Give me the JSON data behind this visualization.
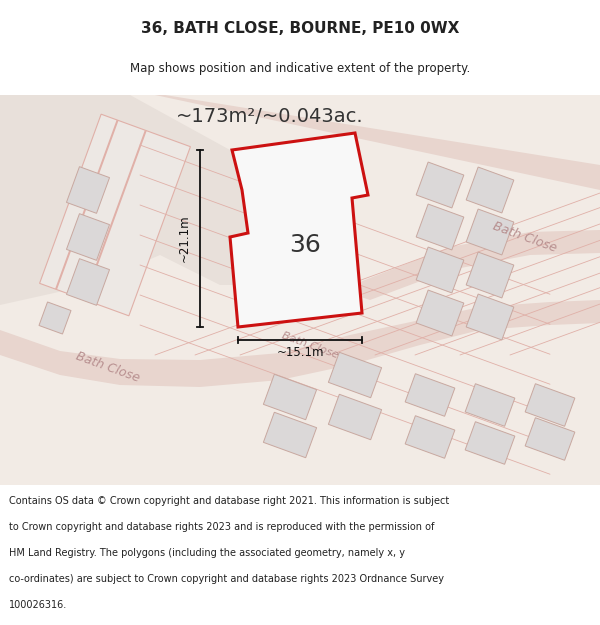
{
  "title_line1": "36, BATH CLOSE, BOURNE, PE10 0WX",
  "title_line2": "Map shows position and indicative extent of the property.",
  "area_text": "~173m²/~0.043ac.",
  "label_36": "36",
  "dim_vertical": "~21.1m",
  "dim_horizontal": "~15.1m",
  "bath_close_label_right": "Bath Close",
  "bath_close_label_bottom": "Bath Close",
  "footer_text": "Contains OS data © Crown copyright and database right 2021. This information is subject to Crown copyright and database rights 2023 and is reproduced with the permission of HM Land Registry. The polygons (including the associated geometry, namely x, y co-ordinates) are subject to Crown copyright and database rights 2023 Ordnance Survey 100026316.",
  "bg_map_color": "#f2ebe5",
  "bg_top_left_color": "#e8e0da",
  "road_fill_color": "#e8d5ce",
  "road_edge_color": "#d4a8a0",
  "plot_outline_color": "#cc1111",
  "plot_fill_color": "#f8f8f8",
  "building_fill_color": "#dbd8d8",
  "building_outline_color": "#c8a8a0",
  "plot_line_color": "#e0b0a8",
  "title_color": "#222222",
  "footer_color": "#222222",
  "dim_color": "#111111",
  "area_color": "#333333",
  "road_label_color": "#b89090",
  "white": "#ffffff"
}
